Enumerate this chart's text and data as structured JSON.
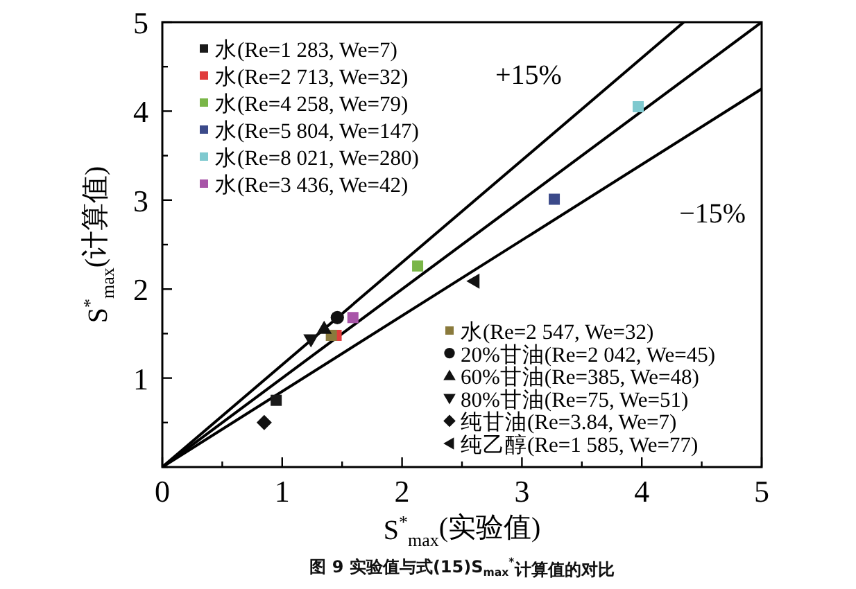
{
  "chart_data": {
    "type": "scatter",
    "xlabel": "S$^{*}$$_{max}$(实验值)",
    "ylabel": "S$^{*}$$_{max}$(计算值)",
    "xlim": [
      0,
      5
    ],
    "ylim": [
      0,
      5
    ],
    "xticks": [
      0,
      {
        "value": 0.5,
        "label": null
      },
      1,
      {
        "value": 1.5,
        "label": null
      },
      2,
      {
        "value": 2.5,
        "label": null
      },
      3,
      {
        "value": 3.5,
        "label": null
      },
      4,
      {
        "value": 4.5,
        "label": null
      },
      5
    ],
    "yticks": [
      {
        "value": 0,
        "label": null
      },
      {
        "value": 0.5,
        "label": null
      },
      1,
      {
        "value": 1.5,
        "label": null
      },
      2,
      {
        "value": 2.5,
        "label": null
      },
      3,
      {
        "value": 3.5,
        "label": null
      },
      4,
      {
        "value": 4.5,
        "label": null
      },
      5
    ],
    "legend": [
      "top left",
      "bottom right"
    ],
    "annotations": [
      "图 9 实验值与式(15)S$_{max}$$^{*}$计算值的对比"
    ],
    "series": [
      {
        "type": "line",
        "color": "#000000",
        "x": [
          0,
          5
        ],
        "values": [
          0,
          5
        ]
      },
      {
        "type": "line",
        "name": "+15%",
        "color": "#000000",
        "x": [
          0,
          4.35
        ],
        "values": [
          0,
          5
        ]
      },
      {
        "type": "line",
        "name": "−15%",
        "color": "#000000",
        "x": [
          0,
          5
        ],
        "values": [
          0,
          4.25
        ]
      },
      {
        "name": "水(Re=1 283, We=7)",
        "color": "#1a1a1a",
        "marker": "square",
        "x": [
          0.95
        ],
        "values": [
          0.75
        ]
      },
      {
        "name": "水(Re=2 713, We=32)",
        "color": "#e03c3c",
        "marker": "square",
        "x": [
          1.45
        ],
        "values": [
          1.48
        ]
      },
      {
        "name": "水(Re=4 258, We=79)",
        "color": "#7ab648",
        "marker": "square",
        "x": [
          2.13
        ],
        "values": [
          2.26
        ]
      },
      {
        "name": "水(Re=5 804, We=147)",
        "color": "#3b4a8a",
        "marker": "square",
        "x": [
          3.27
        ],
        "values": [
          3.01
        ]
      },
      {
        "name": "水(Re=8 021, We=280)",
        "color": "#7fc9cf",
        "marker": "square",
        "x": [
          3.97
        ],
        "values": [
          4.05
        ]
      },
      {
        "name": "水(Re=3 436, We=42)",
        "color": "#a855a8",
        "marker": "square",
        "x": [
          1.59
        ],
        "values": [
          1.68
        ]
      },
      {
        "name": "水(Re=2 547, We=32)",
        "color": "#8a7a3c",
        "marker": "square",
        "x": [
          1.41
        ],
        "values": [
          1.48
        ]
      },
      {
        "name": "20%甘油(Re=2 042, We=45)",
        "color": "#111111",
        "marker": "circle",
        "x": [
          1.46
        ],
        "values": [
          1.68
        ]
      },
      {
        "name": "60%甘油(Re=385, We=48)",
        "color": "#111111",
        "marker": "triangle",
        "x": [
          1.35
        ],
        "values": [
          1.56
        ]
      },
      {
        "name": "80%甘油(Re=75, We=51)",
        "color": "#111111",
        "marker": "triangle-down",
        "x": [
          1.24
        ],
        "values": [
          1.43
        ]
      },
      {
        "name": "纯甘油(Re=3.84, We=7)",
        "color": "#111111",
        "marker": "diamond",
        "x": [
          0.85
        ],
        "values": [
          0.5
        ]
      },
      {
        "name": "纯乙醇(Re=1 585, We=77)",
        "color": "#111111",
        "marker": "triangle-left",
        "x": [
          2.6
        ],
        "values": [
          2.09
        ]
      }
    ]
  }
}
